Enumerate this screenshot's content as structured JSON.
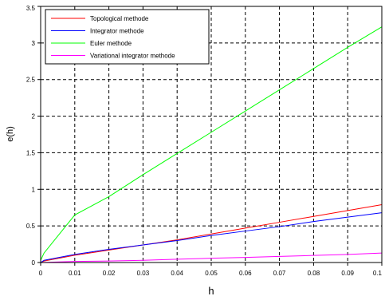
{
  "chart_data": {
    "type": "line",
    "title": "",
    "xlabel": "h",
    "ylabel": "e(h)",
    "xlim": [
      0,
      0.1
    ],
    "ylim": [
      0,
      3.5
    ],
    "grid": true,
    "grid_style": "dashed",
    "legend_position": "top-left",
    "x_ticks": [
      0,
      0.01,
      0.02,
      0.03,
      0.04,
      0.05,
      0.06,
      0.07,
      0.08,
      0.09,
      0.1
    ],
    "x_tick_labels": [
      "0",
      "0.01",
      "0.02",
      "0.03",
      "0.04",
      "0.05",
      "0.06",
      "0.07",
      "0.08",
      "0.09",
      "0.1"
    ],
    "y_ticks": [
      0,
      0.5,
      1,
      1.5,
      2,
      2.5,
      3,
      3.5
    ],
    "y_tick_labels": [
      "0",
      "0.5",
      "1",
      "1.5",
      "2",
      "2.5",
      "3",
      "3.5"
    ],
    "series": [
      {
        "name": "Topological methode",
        "color": "#ff0000",
        "x": [
          0,
          0.001,
          0.01,
          0.02,
          0.03,
          0.04,
          0.05,
          0.06,
          0.07,
          0.08,
          0.09,
          0.1
        ],
        "y": [
          0,
          0.02,
          0.1,
          0.17,
          0.24,
          0.31,
          0.39,
          0.47,
          0.55,
          0.63,
          0.71,
          0.79
        ]
      },
      {
        "name": "Integrator methode",
        "color": "#0000ff",
        "x": [
          0,
          0.001,
          0.01,
          0.02,
          0.03,
          0.04,
          0.05,
          0.06,
          0.07,
          0.08,
          0.09,
          0.1
        ],
        "y": [
          0,
          0.03,
          0.11,
          0.18,
          0.24,
          0.3,
          0.37,
          0.43,
          0.49,
          0.56,
          0.62,
          0.68
        ]
      },
      {
        "name": "Euler methode",
        "color": "#00ff00",
        "x": [
          0,
          0.001,
          0.01,
          0.02,
          0.03,
          0.04,
          0.05,
          0.06,
          0.07,
          0.08,
          0.09,
          0.1
        ],
        "y": [
          0.03,
          0.13,
          0.65,
          0.9,
          1.2,
          1.49,
          1.78,
          2.07,
          2.36,
          2.65,
          2.94,
          3.22
        ]
      },
      {
        "name": "Variational integrator methode",
        "color": "#ff00ff",
        "x": [
          0,
          0.001,
          0.01,
          0.02,
          0.03,
          0.04,
          0.05,
          0.06,
          0.07,
          0.08,
          0.09,
          0.1
        ],
        "y": [
          0,
          0.002,
          0.015,
          0.02,
          0.03,
          0.045,
          0.058,
          0.07,
          0.083,
          0.097,
          0.11,
          0.13
        ]
      }
    ]
  }
}
